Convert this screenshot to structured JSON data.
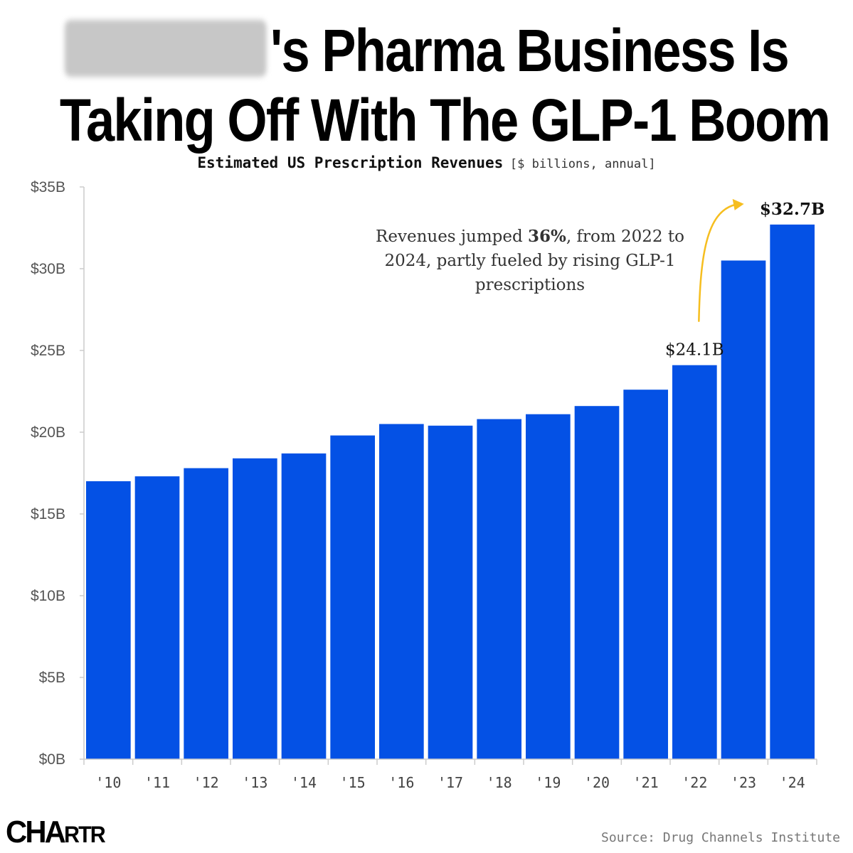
{
  "title": {
    "line1_suffix": "'s Pharma Business Is",
    "line2": "Taking Off With The GLP-1 Boom"
  },
  "subtitle": {
    "main": "Estimated US Prescription Revenues",
    "unit": "[$ billions, annual]"
  },
  "annotation": {
    "before": "Revenues jumped ",
    "highlight": "36%",
    "after": ", from 2022 to 2024, partly fueled by rising GLP-1 prescriptions"
  },
  "logo": {
    "big": "CHA",
    "small": "RTR"
  },
  "source": "Source: Drug Channels Institute",
  "colors": {
    "bar": "#0451E5",
    "arrow": "#F6BE1F",
    "axis": "#cccccc"
  },
  "chart_data": {
    "type": "bar",
    "categories": [
      "'10",
      "'11",
      "'12",
      "'13",
      "'14",
      "'15",
      "'16",
      "'17",
      "'18",
      "'19",
      "'20",
      "'21",
      "'22",
      "'23",
      "'24"
    ],
    "values": [
      17.0,
      17.3,
      17.8,
      18.4,
      18.7,
      19.8,
      20.5,
      20.4,
      20.8,
      21.1,
      21.6,
      22.6,
      24.1,
      30.5,
      32.7
    ],
    "ylim": [
      0,
      35
    ],
    "yticks": [
      0,
      5,
      10,
      15,
      20,
      25,
      30,
      35
    ],
    "ytick_labels": [
      "$0B",
      "$5B",
      "$10B",
      "$15B",
      "$20B",
      "$25B",
      "$30B",
      "$35B"
    ],
    "data_labels": [
      {
        "category": "'22",
        "text": "$24.1B",
        "bold": false
      },
      {
        "category": "'24",
        "text": "$32.7B",
        "bold": true
      }
    ],
    "grid": false,
    "legend": "none"
  }
}
